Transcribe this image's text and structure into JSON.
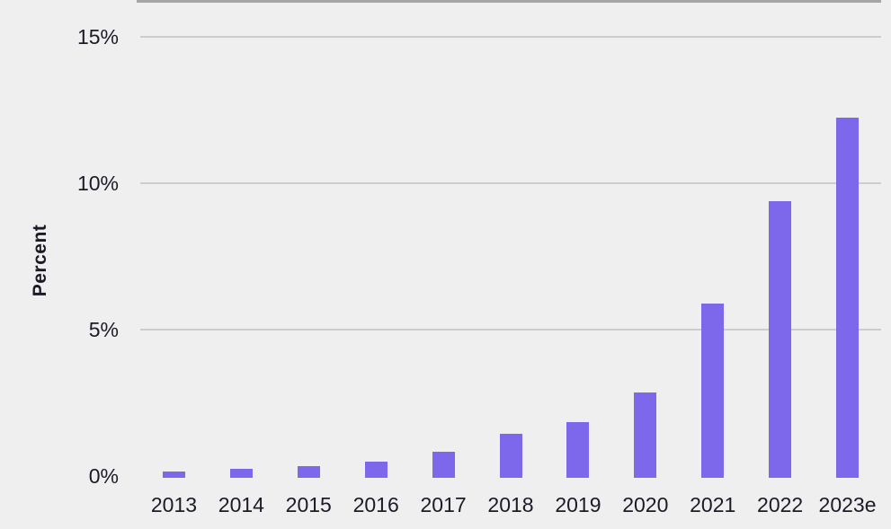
{
  "chart_data": {
    "type": "bar",
    "title": "",
    "ylabel": "Percent",
    "xlabel": "",
    "categories": [
      "2013",
      "2014",
      "2015",
      "2016",
      "2017",
      "2018",
      "2019",
      "2020",
      "2021",
      "2022",
      "2023e"
    ],
    "values": [
      0.2,
      0.3,
      0.4,
      0.55,
      0.9,
      1.5,
      1.9,
      2.9,
      5.95,
      9.45,
      12.3
    ],
    "y_ticks": [
      {
        "value": 0,
        "label": "0%"
      },
      {
        "value": 5,
        "label": "5%"
      },
      {
        "value": 10,
        "label": "10%"
      },
      {
        "value": 15,
        "label": "15%"
      }
    ],
    "ylim": [
      0,
      15
    ],
    "grid": true,
    "legend": "none",
    "colors": {
      "bar": "#7D68EB",
      "background": "#EFEFF0",
      "gridline": "#CDCDCD",
      "axis_line": "#A5A5A5",
      "text": "#1B1B28"
    }
  }
}
